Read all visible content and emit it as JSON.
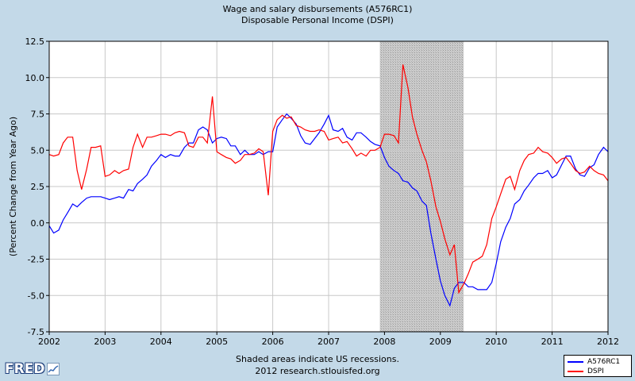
{
  "footer": {
    "line1": "Shaded areas indicate US recessions.",
    "line2": "2012 research.stlouisfed.org"
  },
  "logo": {
    "text": "FRED",
    "icon": "mini-chart-icon"
  },
  "chart_data": {
    "type": "line",
    "title": "Wage and salary disbursements (A576RC1)",
    "subtitle": "Disposable Personal Income (DSPI)",
    "xlabel": "",
    "ylabel": "(Percent Change from Year Ago)",
    "xlim": [
      2002,
      2012
    ],
    "ylim": [
      -7.5,
      12.5
    ],
    "x_ticks": [
      2002,
      2003,
      2004,
      2005,
      2006,
      2007,
      2008,
      2009,
      2010,
      2011,
      2012
    ],
    "y_ticks": [
      "-7.5",
      "-5.0",
      "-2.5",
      "0.0",
      "2.5",
      "5.0",
      "7.5",
      "10.0",
      "12.5"
    ],
    "y_tick_values": [
      -7.5,
      -5.0,
      -2.5,
      0.0,
      2.5,
      5.0,
      7.5,
      10.0,
      12.5
    ],
    "recession": [
      2007.917,
      2009.417
    ],
    "recession_color": "#cccccc",
    "grid": true,
    "legend_position": "bottom-right",
    "series": [
      {
        "name": "A576RC1",
        "color": "#0000ff",
        "points": [
          [
            2002.0,
            -0.2
          ],
          [
            2002.08,
            -0.7
          ],
          [
            2002.17,
            -0.5
          ],
          [
            2002.25,
            0.2
          ],
          [
            2002.33,
            0.7
          ],
          [
            2002.42,
            1.3
          ],
          [
            2002.5,
            1.1
          ],
          [
            2002.58,
            1.4
          ],
          [
            2002.67,
            1.7
          ],
          [
            2002.75,
            1.8
          ],
          [
            2002.83,
            1.8
          ],
          [
            2002.92,
            1.8
          ],
          [
            2003.0,
            1.7
          ],
          [
            2003.08,
            1.6
          ],
          [
            2003.17,
            1.7
          ],
          [
            2003.25,
            1.8
          ],
          [
            2003.33,
            1.7
          ],
          [
            2003.42,
            2.3
          ],
          [
            2003.5,
            2.2
          ],
          [
            2003.58,
            2.7
          ],
          [
            2003.67,
            3.0
          ],
          [
            2003.75,
            3.3
          ],
          [
            2003.83,
            3.9
          ],
          [
            2003.92,
            4.3
          ],
          [
            2004.0,
            4.7
          ],
          [
            2004.08,
            4.5
          ],
          [
            2004.17,
            4.7
          ],
          [
            2004.25,
            4.6
          ],
          [
            2004.33,
            4.6
          ],
          [
            2004.42,
            5.2
          ],
          [
            2004.5,
            5.5
          ],
          [
            2004.58,
            5.5
          ],
          [
            2004.67,
            6.4
          ],
          [
            2004.75,
            6.6
          ],
          [
            2004.83,
            6.4
          ],
          [
            2004.92,
            5.5
          ],
          [
            2005.0,
            5.8
          ],
          [
            2005.08,
            5.9
          ],
          [
            2005.17,
            5.8
          ],
          [
            2005.25,
            5.3
          ],
          [
            2005.33,
            5.3
          ],
          [
            2005.42,
            4.7
          ],
          [
            2005.5,
            5.0
          ],
          [
            2005.58,
            4.7
          ],
          [
            2005.67,
            4.7
          ],
          [
            2005.75,
            4.9
          ],
          [
            2005.83,
            4.7
          ],
          [
            2005.92,
            4.9
          ],
          [
            2006.0,
            4.9
          ],
          [
            2006.08,
            6.6
          ],
          [
            2006.17,
            7.1
          ],
          [
            2006.25,
            7.5
          ],
          [
            2006.33,
            7.2
          ],
          [
            2006.42,
            6.8
          ],
          [
            2006.5,
            6.0
          ],
          [
            2006.58,
            5.5
          ],
          [
            2006.67,
            5.4
          ],
          [
            2006.75,
            5.8
          ],
          [
            2006.83,
            6.2
          ],
          [
            2006.92,
            6.8
          ],
          [
            2007.0,
            7.4
          ],
          [
            2007.08,
            6.4
          ],
          [
            2007.17,
            6.3
          ],
          [
            2007.25,
            6.5
          ],
          [
            2007.33,
            5.9
          ],
          [
            2007.42,
            5.7
          ],
          [
            2007.5,
            6.2
          ],
          [
            2007.58,
            6.2
          ],
          [
            2007.67,
            5.9
          ],
          [
            2007.75,
            5.6
          ],
          [
            2007.83,
            5.4
          ],
          [
            2007.92,
            5.3
          ],
          [
            2008.0,
            4.5
          ],
          [
            2008.08,
            3.9
          ],
          [
            2008.17,
            3.6
          ],
          [
            2008.25,
            3.4
          ],
          [
            2008.33,
            2.9
          ],
          [
            2008.42,
            2.8
          ],
          [
            2008.5,
            2.4
          ],
          [
            2008.58,
            2.2
          ],
          [
            2008.67,
            1.5
          ],
          [
            2008.75,
            1.2
          ],
          [
            2008.83,
            -0.7
          ],
          [
            2008.92,
            -2.5
          ],
          [
            2009.0,
            -4.0
          ],
          [
            2009.08,
            -5.0
          ],
          [
            2009.17,
            -5.7
          ],
          [
            2009.25,
            -4.5
          ],
          [
            2009.33,
            -4.1
          ],
          [
            2009.42,
            -4.1
          ],
          [
            2009.5,
            -4.4
          ],
          [
            2009.58,
            -4.4
          ],
          [
            2009.67,
            -4.6
          ],
          [
            2009.75,
            -4.6
          ],
          [
            2009.83,
            -4.6
          ],
          [
            2009.92,
            -4.1
          ],
          [
            2010.0,
            -2.8
          ],
          [
            2010.08,
            -1.3
          ],
          [
            2010.17,
            -0.3
          ],
          [
            2010.25,
            0.3
          ],
          [
            2010.33,
            1.3
          ],
          [
            2010.42,
            1.6
          ],
          [
            2010.5,
            2.2
          ],
          [
            2010.58,
            2.6
          ],
          [
            2010.67,
            3.1
          ],
          [
            2010.75,
            3.4
          ],
          [
            2010.83,
            3.4
          ],
          [
            2010.92,
            3.6
          ],
          [
            2011.0,
            3.1
          ],
          [
            2011.08,
            3.3
          ],
          [
            2011.17,
            4.0
          ],
          [
            2011.25,
            4.6
          ],
          [
            2011.33,
            4.6
          ],
          [
            2011.42,
            3.7
          ],
          [
            2011.5,
            3.3
          ],
          [
            2011.58,
            3.2
          ],
          [
            2011.67,
            3.8
          ],
          [
            2011.75,
            4.0
          ],
          [
            2011.83,
            4.7
          ],
          [
            2011.92,
            5.2
          ],
          [
            2012.0,
            4.9
          ]
        ]
      },
      {
        "name": "DSPI",
        "color": "#ff0000",
        "points": [
          [
            2002.0,
            4.7
          ],
          [
            2002.08,
            4.6
          ],
          [
            2002.17,
            4.7
          ],
          [
            2002.25,
            5.5
          ],
          [
            2002.33,
            5.9
          ],
          [
            2002.42,
            5.9
          ],
          [
            2002.5,
            3.6
          ],
          [
            2002.58,
            2.3
          ],
          [
            2002.67,
            3.7
          ],
          [
            2002.75,
            5.2
          ],
          [
            2002.83,
            5.2
          ],
          [
            2002.92,
            5.3
          ],
          [
            2003.0,
            3.2
          ],
          [
            2003.08,
            3.3
          ],
          [
            2003.17,
            3.6
          ],
          [
            2003.25,
            3.4
          ],
          [
            2003.33,
            3.6
          ],
          [
            2003.42,
            3.7
          ],
          [
            2003.5,
            5.2
          ],
          [
            2003.58,
            6.1
          ],
          [
            2003.67,
            5.2
          ],
          [
            2003.75,
            5.9
          ],
          [
            2003.83,
            5.9
          ],
          [
            2003.92,
            6.0
          ],
          [
            2004.0,
            6.1
          ],
          [
            2004.08,
            6.1
          ],
          [
            2004.17,
            6.0
          ],
          [
            2004.25,
            6.2
          ],
          [
            2004.33,
            6.3
          ],
          [
            2004.42,
            6.2
          ],
          [
            2004.5,
            5.3
          ],
          [
            2004.58,
            5.2
          ],
          [
            2004.67,
            5.9
          ],
          [
            2004.75,
            5.9
          ],
          [
            2004.83,
            5.5
          ],
          [
            2004.92,
            8.7
          ],
          [
            2005.0,
            4.9
          ],
          [
            2005.08,
            4.7
          ],
          [
            2005.17,
            4.5
          ],
          [
            2005.25,
            4.4
          ],
          [
            2005.33,
            4.1
          ],
          [
            2005.42,
            4.3
          ],
          [
            2005.5,
            4.7
          ],
          [
            2005.58,
            4.7
          ],
          [
            2005.67,
            4.8
          ],
          [
            2005.75,
            5.1
          ],
          [
            2005.83,
            4.9
          ],
          [
            2005.92,
            1.9
          ],
          [
            2006.0,
            6.3
          ],
          [
            2006.08,
            7.1
          ],
          [
            2006.17,
            7.4
          ],
          [
            2006.25,
            7.2
          ],
          [
            2006.33,
            7.3
          ],
          [
            2006.42,
            6.7
          ],
          [
            2006.5,
            6.6
          ],
          [
            2006.58,
            6.4
          ],
          [
            2006.67,
            6.3
          ],
          [
            2006.75,
            6.3
          ],
          [
            2006.83,
            6.4
          ],
          [
            2006.92,
            6.3
          ],
          [
            2007.0,
            5.7
          ],
          [
            2007.08,
            5.8
          ],
          [
            2007.17,
            5.9
          ],
          [
            2007.25,
            5.5
          ],
          [
            2007.33,
            5.6
          ],
          [
            2007.42,
            5.1
          ],
          [
            2007.5,
            4.6
          ],
          [
            2007.58,
            4.8
          ],
          [
            2007.67,
            4.6
          ],
          [
            2007.75,
            5.0
          ],
          [
            2007.83,
            5.0
          ],
          [
            2007.92,
            5.2
          ],
          [
            2008.0,
            6.1
          ],
          [
            2008.08,
            6.1
          ],
          [
            2008.17,
            6.0
          ],
          [
            2008.25,
            5.5
          ],
          [
            2008.33,
            10.9
          ],
          [
            2008.42,
            9.3
          ],
          [
            2008.5,
            7.3
          ],
          [
            2008.58,
            6.1
          ],
          [
            2008.67,
            5.0
          ],
          [
            2008.75,
            4.2
          ],
          [
            2008.83,
            2.9
          ],
          [
            2008.92,
            1.1
          ],
          [
            2009.0,
            0.1
          ],
          [
            2009.08,
            -1.1
          ],
          [
            2009.17,
            -2.2
          ],
          [
            2009.25,
            -1.5
          ],
          [
            2009.33,
            -4.8
          ],
          [
            2009.42,
            -4.2
          ],
          [
            2009.5,
            -3.5
          ],
          [
            2009.58,
            -2.7
          ],
          [
            2009.67,
            -2.5
          ],
          [
            2009.75,
            -2.3
          ],
          [
            2009.83,
            -1.5
          ],
          [
            2009.92,
            0.3
          ],
          [
            2010.0,
            1.1
          ],
          [
            2010.08,
            2.0
          ],
          [
            2010.17,
            3.0
          ],
          [
            2010.25,
            3.2
          ],
          [
            2010.33,
            2.3
          ],
          [
            2010.42,
            3.6
          ],
          [
            2010.5,
            4.3
          ],
          [
            2010.58,
            4.7
          ],
          [
            2010.67,
            4.8
          ],
          [
            2010.75,
            5.2
          ],
          [
            2010.83,
            4.9
          ],
          [
            2010.92,
            4.8
          ],
          [
            2011.0,
            4.5
          ],
          [
            2011.08,
            4.1
          ],
          [
            2011.17,
            4.4
          ],
          [
            2011.25,
            4.5
          ],
          [
            2011.33,
            4.1
          ],
          [
            2011.42,
            3.6
          ],
          [
            2011.5,
            3.4
          ],
          [
            2011.58,
            3.5
          ],
          [
            2011.67,
            3.9
          ],
          [
            2011.75,
            3.6
          ],
          [
            2011.83,
            3.4
          ],
          [
            2011.92,
            3.3
          ],
          [
            2012.0,
            2.9
          ]
        ]
      }
    ]
  }
}
